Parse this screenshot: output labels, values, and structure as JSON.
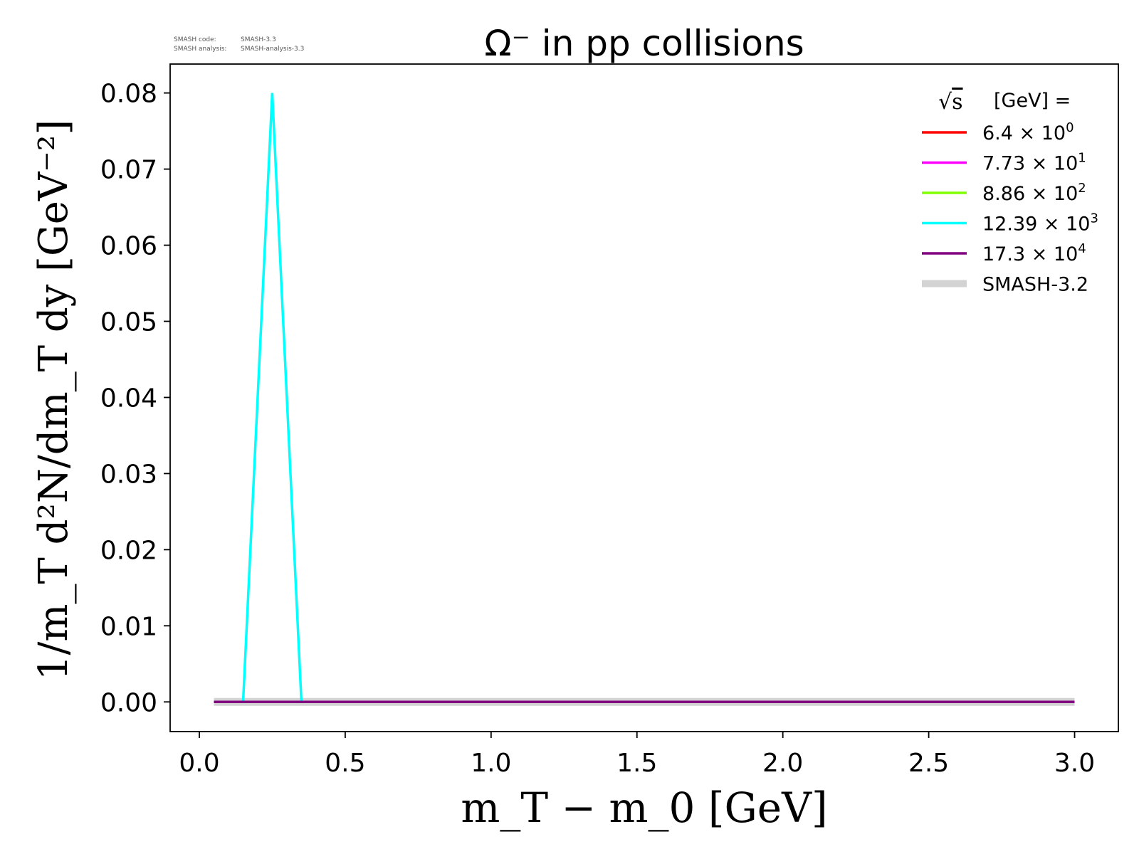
{
  "meta": {
    "code_label": "SMASH code:",
    "code_value": "SMASH-3.3",
    "analysis_label": "SMASH analysis:",
    "analysis_value": "SMASH-analysis-3.3"
  },
  "colors": {
    "red": "#ff0000",
    "magenta": "#ff00ff",
    "green": "#7fff00",
    "cyan": "#00ffff",
    "purple": "#800080",
    "reference": "#d3d3d3"
  },
  "chart_data": {
    "type": "line",
    "title": "Ω⁻ in pp collisions",
    "xlabel": "m_T − m_0 [GeV]",
    "ylabel": "1/m_T d²N/dm_T dy [GeV⁻²]",
    "xlim": [
      -0.1,
      3.15
    ],
    "ylim": [
      -0.0039,
      0.0838
    ],
    "xticks": [
      0.0,
      0.5,
      1.0,
      1.5,
      2.0,
      2.5,
      3.0
    ],
    "xtick_labels": [
      "0.0",
      "0.5",
      "1.0",
      "1.5",
      "2.0",
      "2.5",
      "3.0"
    ],
    "yticks": [
      0.0,
      0.01,
      0.02,
      0.03,
      0.04,
      0.05,
      0.06,
      0.07,
      0.08
    ],
    "ytick_labels": [
      "0.00",
      "0.01",
      "0.02",
      "0.03",
      "0.04",
      "0.05",
      "0.06",
      "0.07",
      "0.08"
    ],
    "legend_title": "[GeV] =",
    "legend_position": "top-right",
    "series": [
      {
        "name_mantissa": "6.4",
        "name_times": "×",
        "name_base": "10",
        "name_exp": "0",
        "color": "#ff0000",
        "x": [
          0.05,
          0.15,
          0.25,
          0.35,
          0.45,
          1.0,
          1.5,
          2.0,
          2.5,
          3.0
        ],
        "y": [
          0,
          0,
          0,
          0,
          0,
          0,
          0,
          0,
          0,
          0
        ]
      },
      {
        "name_mantissa": "7.73",
        "name_times": "×",
        "name_base": "10",
        "name_exp": "1",
        "color": "#ff00ff",
        "x": [
          0.05,
          0.15,
          0.25,
          0.35,
          0.45,
          1.0,
          1.5,
          2.0,
          2.5,
          3.0
        ],
        "y": [
          0,
          0,
          0,
          0,
          0,
          0,
          0,
          0,
          0,
          0
        ]
      },
      {
        "name_mantissa": "8.86",
        "name_times": "×",
        "name_base": "10",
        "name_exp": "2",
        "color": "#7fff00",
        "x": [
          0.05,
          0.15,
          0.25,
          0.35,
          0.45,
          1.0,
          1.5,
          2.0,
          2.5,
          3.0
        ],
        "y": [
          0,
          0,
          0,
          0,
          0,
          0,
          0,
          0,
          0,
          0
        ]
      },
      {
        "name_mantissa": "12.39",
        "name_times": "×",
        "name_base": "10",
        "name_exp": "3",
        "color": "#00ffff",
        "x": [
          0.15,
          0.25,
          0.35
        ],
        "y": [
          0,
          0.08,
          0
        ]
      },
      {
        "name_mantissa": "17.3",
        "name_times": "×",
        "name_base": "10",
        "name_exp": "4",
        "color": "#800080",
        "x": [
          0.05,
          0.15,
          0.25,
          0.35,
          0.45,
          1.0,
          1.5,
          2.0,
          2.5,
          3.0
        ],
        "y": [
          0,
          0,
          0,
          0,
          0,
          0,
          0,
          0,
          0,
          0
        ]
      }
    ],
    "reference": {
      "name": "SMASH-3.2",
      "color": "#d3d3d3",
      "x": [
        0.05,
        0.15,
        0.25,
        0.35,
        0.45,
        1.0,
        1.5,
        2.0,
        2.5,
        3.0
      ],
      "y": [
        0,
        0,
        0,
        0,
        0,
        0,
        0,
        0,
        0,
        0
      ]
    }
  }
}
